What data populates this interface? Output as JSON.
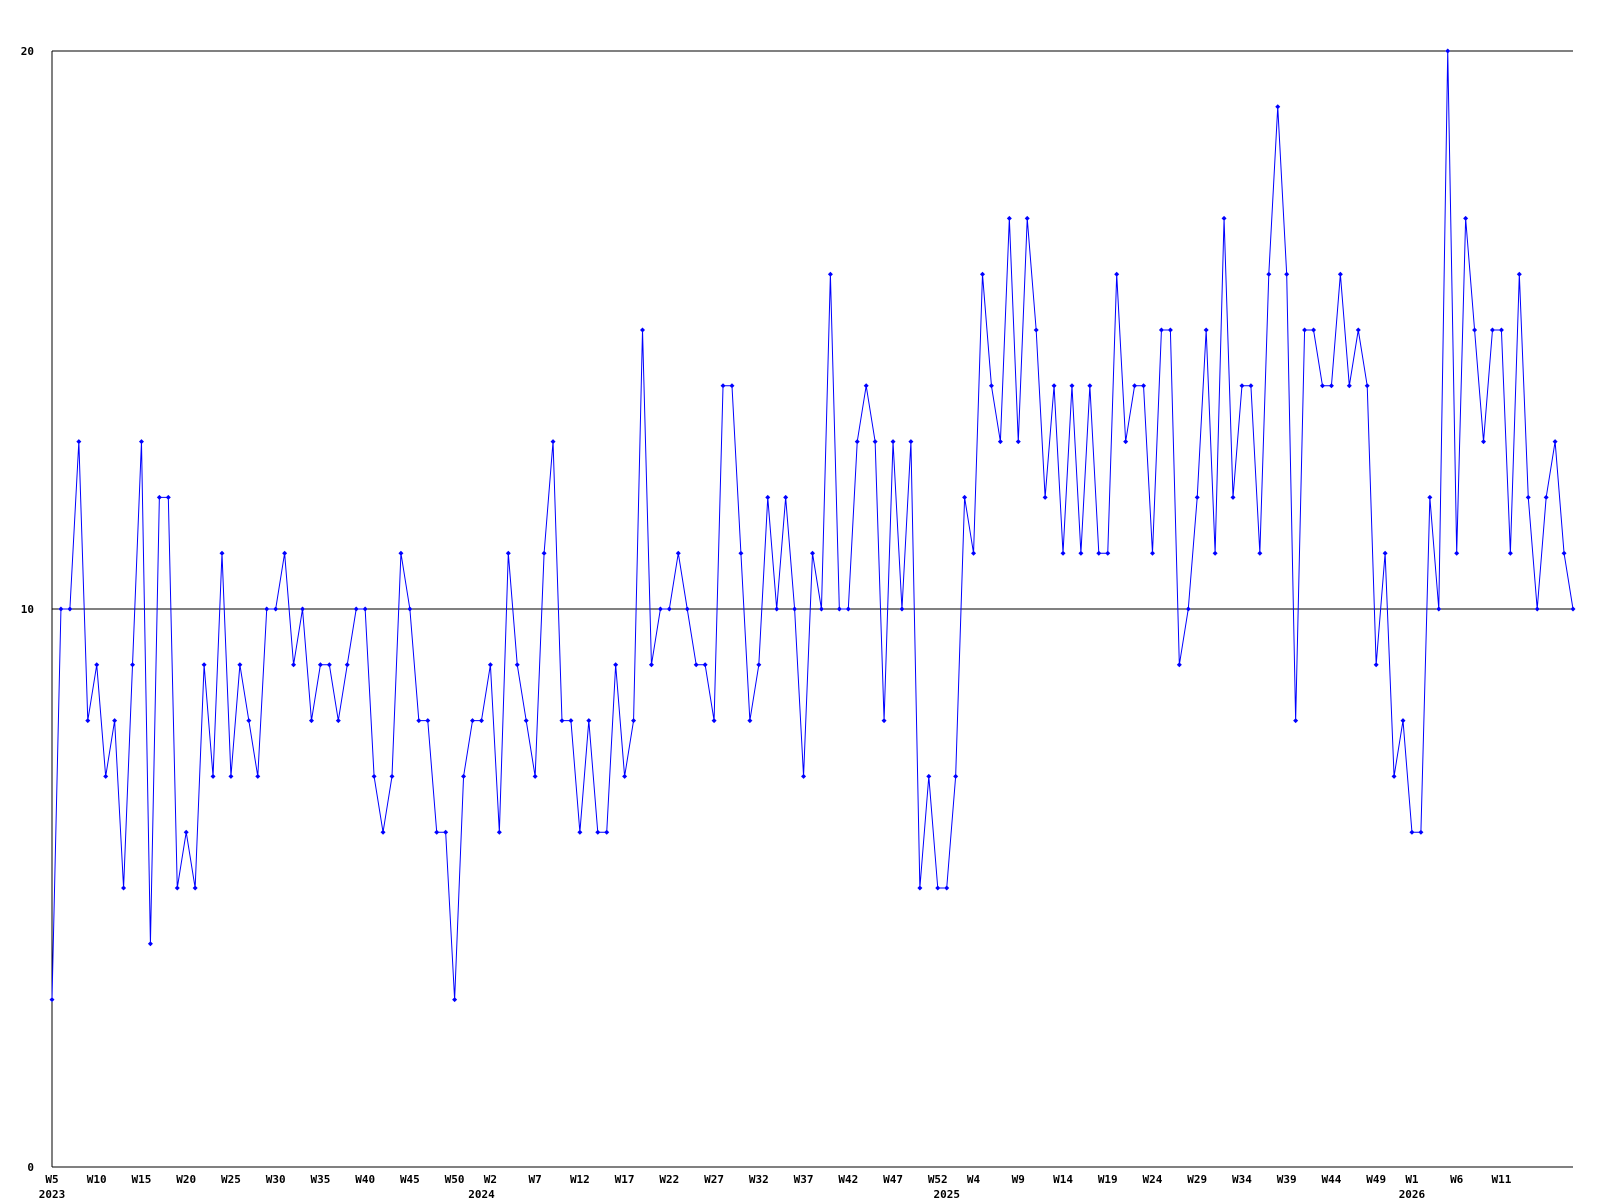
{
  "chart_data": {
    "type": "line",
    "color": "#0000ff",
    "grid": true,
    "ylim": [
      0,
      20
    ],
    "yticks": [
      0,
      10,
      20
    ],
    "categories": [
      "W5",
      null,
      null,
      null,
      null,
      "W10",
      null,
      null,
      null,
      null,
      "W15",
      null,
      null,
      null,
      null,
      "W20",
      null,
      null,
      null,
      null,
      "W25",
      null,
      null,
      null,
      null,
      "W30",
      null,
      null,
      null,
      null,
      "W35",
      null,
      null,
      null,
      null,
      "W40",
      null,
      null,
      null,
      null,
      "W45",
      null,
      null,
      null,
      null,
      "W50",
      null,
      null,
      null,
      "W2",
      null,
      null,
      null,
      null,
      "W7",
      null,
      null,
      null,
      null,
      "W12",
      null,
      null,
      null,
      null,
      "W17",
      null,
      null,
      null,
      null,
      "W22",
      null,
      null,
      null,
      null,
      "W27",
      null,
      null,
      null,
      null,
      "W32",
      null,
      null,
      null,
      null,
      "W37",
      null,
      null,
      null,
      null,
      "W42",
      null,
      null,
      null,
      null,
      "W47",
      null,
      null,
      null,
      null,
      "W52",
      null,
      null,
      null,
      "W4",
      null,
      null,
      null,
      null,
      "W9",
      null,
      null,
      null,
      null,
      "W14",
      null,
      null,
      null,
      null,
      "W19",
      null,
      null,
      null,
      null,
      "W24",
      null,
      null,
      null,
      null,
      "W29",
      null,
      null,
      null,
      null,
      "W34",
      null,
      null,
      null,
      null,
      "W39",
      null,
      null,
      null,
      null,
      "W44",
      null,
      null,
      null,
      null,
      "W49",
      null,
      null,
      null,
      "W1",
      null,
      null,
      null,
      null,
      "W6",
      null,
      null,
      null,
      null,
      "W11",
      null,
      null,
      null,
      null,
      null,
      null,
      null,
      null
    ],
    "years": [
      "2023",
      null,
      null,
      null,
      null,
      null,
      null,
      null,
      null,
      null,
      null,
      null,
      null,
      null,
      null,
      null,
      null,
      null,
      null,
      null,
      null,
      null,
      null,
      null,
      null,
      null,
      null,
      null,
      null,
      null,
      null,
      null,
      null,
      null,
      null,
      null,
      null,
      null,
      null,
      null,
      null,
      null,
      null,
      null,
      null,
      null,
      null,
      null,
      "2024",
      null,
      null,
      null,
      null,
      null,
      null,
      null,
      null,
      null,
      null,
      null,
      null,
      null,
      null,
      null,
      null,
      null,
      null,
      null,
      null,
      null,
      null,
      null,
      null,
      null,
      null,
      null,
      null,
      null,
      null,
      null,
      null,
      null,
      null,
      null,
      null,
      null,
      null,
      null,
      null,
      null,
      null,
      null,
      null,
      null,
      null,
      null,
      null,
      null,
      null,
      null,
      "2025",
      null,
      null,
      null,
      null,
      null,
      null,
      null,
      null,
      null,
      null,
      null,
      null,
      null,
      null,
      null,
      null,
      null,
      null,
      null,
      null,
      null,
      null,
      null,
      null,
      null,
      null,
      null,
      null,
      null,
      null,
      null,
      null,
      null,
      null,
      null,
      null,
      null,
      null,
      null,
      null,
      null,
      null,
      null,
      null,
      null,
      null,
      null,
      null,
      null,
      null,
      null,
      "2026",
      null,
      null,
      null,
      null,
      null,
      null,
      null,
      null,
      null,
      null,
      null,
      null,
      null,
      null,
      null,
      null,
      null,
      null
    ],
    "values": [
      3,
      10,
      10,
      13,
      8,
      9,
      7,
      8,
      5,
      9,
      13,
      4,
      12,
      12,
      5,
      6,
      5,
      9,
      7,
      11,
      7,
      9,
      8,
      7,
      10,
      10,
      11,
      9,
      10,
      8,
      9,
      9,
      8,
      9,
      10,
      10,
      7,
      6,
      7,
      11,
      10,
      8,
      8,
      6,
      6,
      3,
      7,
      8,
      8,
      9,
      6,
      11,
      9,
      8,
      7,
      11,
      13,
      8,
      8,
      6,
      8,
      6,
      6,
      9,
      7,
      8,
      15,
      9,
      10,
      10,
      11,
      10,
      9,
      9,
      8,
      14,
      14,
      11,
      8,
      9,
      12,
      10,
      12,
      10,
      7,
      11,
      10,
      16,
      10,
      10,
      13,
      14,
      13,
      8,
      13,
      10,
      13,
      5,
      7,
      5,
      5,
      7,
      12,
      11,
      16,
      14,
      13,
      17,
      13,
      17,
      15,
      12,
      14,
      11,
      14,
      11,
      14,
      11,
      11,
      16,
      13,
      14,
      14,
      11,
      15,
      15,
      9,
      10,
      12,
      15,
      11,
      17,
      12,
      14,
      14,
      11,
      16,
      19,
      16,
      8,
      15,
      15,
      14,
      14,
      16,
      14,
      15,
      14,
      9,
      11,
      7,
      8,
      6,
      6,
      12,
      10,
      20,
      11,
      17,
      15,
      13,
      15,
      15,
      11,
      16,
      12,
      10,
      12,
      13,
      11,
      10
    ]
  }
}
